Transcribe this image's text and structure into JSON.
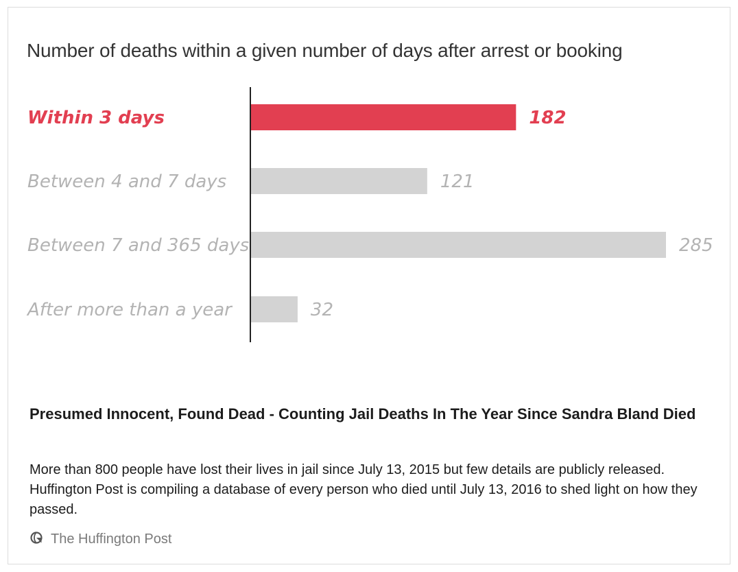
{
  "chart_data": {
    "type": "bar",
    "orientation": "horizontal",
    "title": "Number of deaths within a given number of days after arrest or booking",
    "categories": [
      "Within 3 days",
      "Between 4 and 7 days",
      "Between 7 and 365 days",
      "After more than a year"
    ],
    "values": [
      182,
      121,
      285,
      32
    ],
    "highlight_index": 0,
    "highlight_color": "#e23f51",
    "bar_color": "#d3d3d3",
    "label_color": "#b3b3b3",
    "axis_color": "#222222",
    "xlim": [
      0,
      285
    ],
    "grid": false,
    "legend": "none"
  },
  "link_card": {
    "headline": "Presumed Innocent, Found Dead - Counting Jail Deaths In The Year Since Sandra Bland Died",
    "description": "More than 800 people have lost their lives in jail since July 13, 2015 but few details are publicly released. Huffington Post is compiling a database of every person who died until July 13, 2016 to shed light on how they passed.",
    "source": "The Huffington Post",
    "source_icon": "globe-icon"
  }
}
